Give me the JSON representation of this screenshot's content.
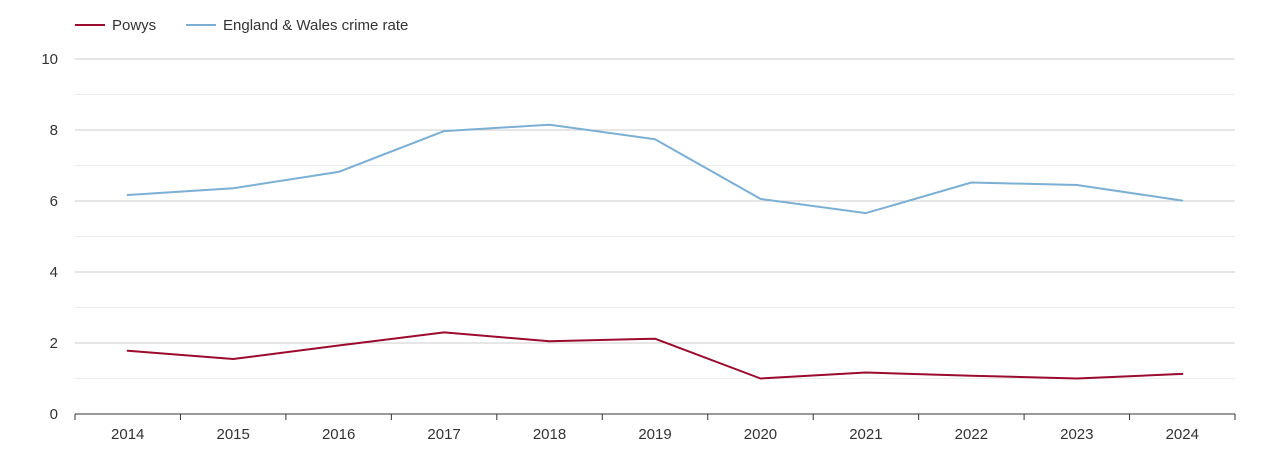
{
  "chart_data": {
    "type": "line",
    "title": "",
    "xlabel": "",
    "ylabel": "",
    "categories": [
      "2014",
      "2015",
      "2016",
      "2017",
      "2018",
      "2019",
      "2020",
      "2021",
      "2022",
      "2023",
      "2024"
    ],
    "y_ticks": [
      "0",
      "2",
      "4",
      "6",
      "8",
      "10"
    ],
    "ylim": [
      0,
      10
    ],
    "grid": true,
    "legend_position": "top-left",
    "series": [
      {
        "name": "Powys",
        "color": "#9b0a2f",
        "values": [
          1.78,
          1.55,
          1.93,
          2.3,
          2.05,
          2.12,
          1.0,
          1.17,
          1.08,
          1.0,
          1.13
        ]
      },
      {
        "name": "England & Wales crime rate",
        "color": "#7bafd4",
        "values": [
          6.17,
          6.36,
          6.82,
          7.97,
          8.15,
          7.74,
          6.06,
          5.66,
          6.52,
          6.45,
          6.01
        ]
      }
    ]
  }
}
